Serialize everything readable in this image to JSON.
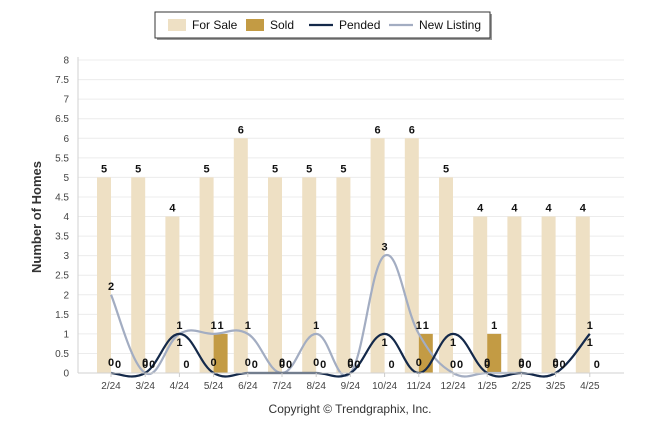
{
  "chart_data": {
    "type": "bar",
    "categories": [
      "2/24",
      "3/24",
      "4/24",
      "5/24",
      "6/24",
      "7/24",
      "8/24",
      "9/24",
      "10/24",
      "11/24",
      "12/24",
      "1/25",
      "2/25",
      "3/25",
      "4/25"
    ],
    "series": [
      {
        "name": "For Sale",
        "kind": "bar",
        "color": "#eee0c4",
        "values": [
          5,
          5,
          4,
          5,
          6,
          5,
          5,
          5,
          6,
          6,
          5,
          4,
          4,
          4,
          4
        ]
      },
      {
        "name": "Sold",
        "kind": "bar",
        "color": "#c39b44",
        "values": [
          0,
          0,
          0,
          1,
          0,
          0,
          0,
          0,
          0,
          1,
          0,
          1,
          0,
          0,
          0
        ]
      },
      {
        "name": "Pended",
        "kind": "line",
        "color": "#14294a",
        "values": [
          0,
          0,
          1,
          0,
          0,
          0,
          0,
          0,
          1,
          0,
          1,
          0,
          0,
          0,
          1
        ]
      },
      {
        "name": "New Listing",
        "kind": "line",
        "color": "#a3adc2",
        "values": [
          2,
          0,
          1,
          1,
          1,
          0,
          1,
          0,
          3,
          1,
          0,
          0,
          0,
          0,
          1
        ]
      }
    ],
    "ylabel": "Number of Homes",
    "ylim": [
      0,
      8
    ],
    "yticks": [
      "0",
      "0.5",
      "1",
      "1.5",
      "2",
      "2.5",
      "3",
      "3.5",
      "4",
      "4.5",
      "5",
      "5.5",
      "6",
      "6.5",
      "7",
      "7.5",
      "8"
    ],
    "grid": true,
    "legend": "top-center",
    "credit": "Copyright © Trendgraphix, Inc."
  }
}
